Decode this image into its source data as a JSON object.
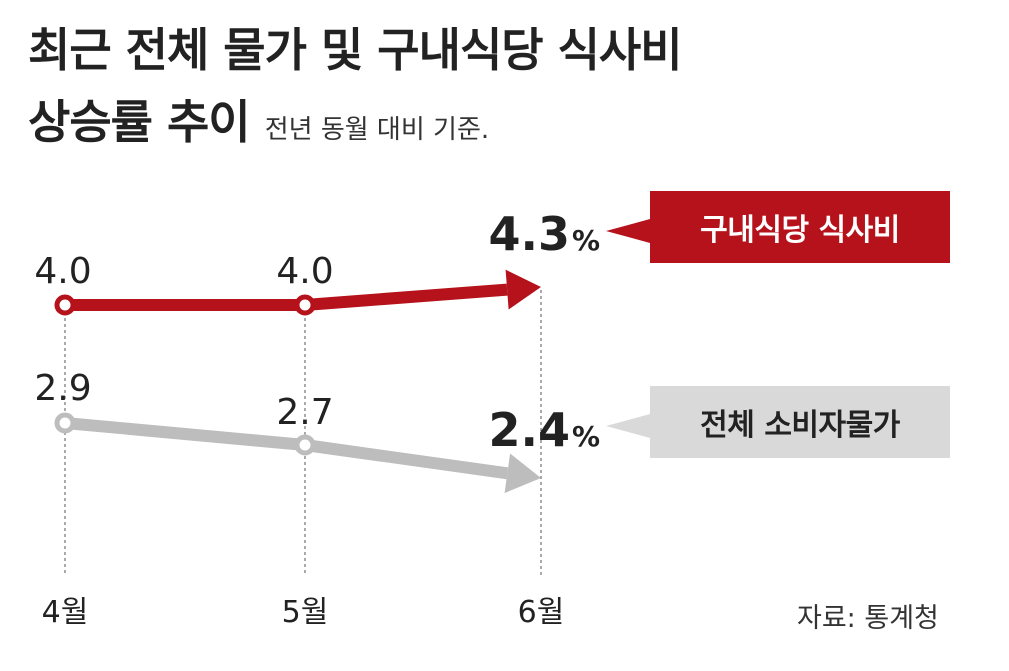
{
  "title_line1": "최근 전체 물가 및 구내식당 식사비",
  "title_line2": "상승률 추이",
  "subtitle": "전년 동월 대비 기준.",
  "source": "자료: 통계청",
  "colors": {
    "red": "#b5121b",
    "gray": "#bdbdbd",
    "gray_box": "#d9d9d9"
  },
  "chart_data": {
    "type": "line",
    "categories": [
      "4월",
      "5월",
      "6월"
    ],
    "unit": "%",
    "series": [
      {
        "name": "구내식당 식사비",
        "color": "#b5121b",
        "values": [
          4.0,
          4.0,
          4.3
        ],
        "labels": [
          "4.0",
          "4.0",
          "4.3"
        ]
      },
      {
        "name": "전체 소비자물가",
        "color": "#bdbdbd",
        "values": [
          2.9,
          2.7,
          2.4
        ],
        "labels": [
          "2.9",
          "2.7",
          "2.4"
        ]
      }
    ]
  }
}
